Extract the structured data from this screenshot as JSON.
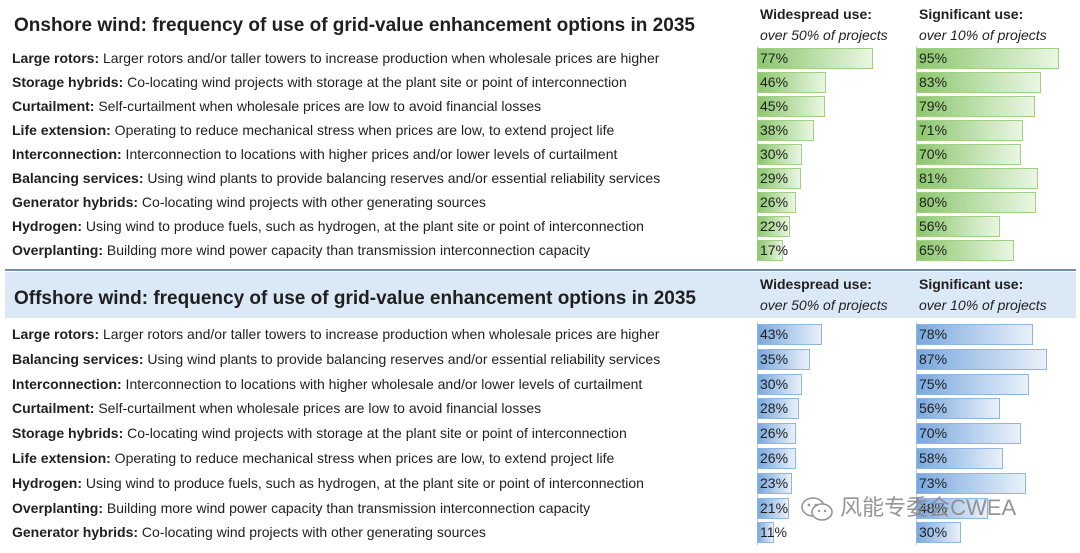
{
  "chart_data": [
    {
      "type": "bar",
      "title": "Onshore wind: frequency of use of grid-value enhancement options in 2035",
      "columns": [
        {
          "heading": "Widespread use:",
          "subheading": "over 50% of projects"
        },
        {
          "heading": "Significant use:",
          "subheading": "over 10% of projects"
        }
      ],
      "rows": [
        {
          "name": "Large rotors:",
          "desc": " Larger rotors and/or taller towers to increase production when wholesale prices are higher",
          "widespread": 77,
          "significant": 95
        },
        {
          "name": "Storage hybrids:",
          "desc": " Co-locating wind projects with storage at the plant site or point of interconnection",
          "widespread": 46,
          "significant": 83
        },
        {
          "name": "Curtailment:",
          "desc": " Self-curtailment when wholesale prices are low to avoid financial losses",
          "widespread": 45,
          "significant": 79
        },
        {
          "name": "Life extension:",
          "desc": " Operating to reduce mechanical stress when prices are low, to extend project life",
          "widespread": 38,
          "significant": 71
        },
        {
          "name": "Interconnection:",
          "desc": " Interconnection to locations with higher prices and/or lower levels of curtailment",
          "widespread": 30,
          "significant": 70
        },
        {
          "name": "Balancing services:",
          "desc": " Using wind plants to provide balancing reserves and/or essential reliability services",
          "widespread": 29,
          "significant": 81
        },
        {
          "name": "Generator hybrids:",
          "desc": " Co-locating wind projects with other generating sources",
          "widespread": 26,
          "significant": 80
        },
        {
          "name": "Hydrogen:",
          "desc": " Using wind to produce fuels, such as hydrogen, at the plant site or point of interconnection",
          "widespread": 22,
          "significant": 56
        },
        {
          "name": "Overplanting:",
          "desc": " Building more wind power capacity than transmission interconnection capacity",
          "widespread": 17,
          "significant": 65
        }
      ],
      "xlim": [
        0,
        100
      ],
      "unit": "%"
    },
    {
      "type": "bar",
      "title": "Offshore wind: frequency of use of grid-value enhancement options in 2035",
      "columns": [
        {
          "heading": "Widespread use:",
          "subheading": "over 50% of projects"
        },
        {
          "heading": "Significant use:",
          "subheading": "over 10% of projects"
        }
      ],
      "rows": [
        {
          "name": "Large rotors:",
          "desc": " Larger rotors and/or taller towers to increase production when wholesale prices are higher",
          "widespread": 43,
          "significant": 78
        },
        {
          "name": "Balancing services:",
          "desc": " Using wind plants to provide balancing reserves and/or essential reliability services",
          "widespread": 35,
          "significant": 87
        },
        {
          "name": "Interconnection:",
          "desc": " Interconnection to locations with higher wholesale and/or lower levels of curtailment",
          "widespread": 30,
          "significant": 75
        },
        {
          "name": "Curtailment:",
          "desc": " Self-curtailment when wholesale prices are low to avoid financial losses",
          "widespread": 28,
          "significant": 56
        },
        {
          "name": "Storage hybrids:",
          "desc": " Co-locating wind projects with storage at the plant site or point of interconnection",
          "widespread": 26,
          "significant": 70
        },
        {
          "name": "Life extension:",
          "desc": " Operating to reduce mechanical stress when prices are low, to extend project life",
          "widespread": 26,
          "significant": 58
        },
        {
          "name": "Hydrogen:",
          "desc": " Using wind to produce fuels, such as hydrogen, at the plant site or point of interconnection",
          "widespread": 23,
          "significant": 73
        },
        {
          "name": "Overplanting:",
          "desc": " Building more wind power capacity than transmission interconnection capacity",
          "widespread": 21,
          "significant": 48
        },
        {
          "name": "Generator hybrids:",
          "desc": " Co-locating wind projects with other generating sources",
          "widespread": 11,
          "significant": 30
        }
      ],
      "xlim": [
        0,
        100
      ],
      "unit": "%"
    }
  ],
  "watermark": {
    "text": "风能专委会CWEA",
    "icon": "wechat-icon"
  },
  "colors": {
    "onshore_bar": "#8cc66e",
    "offshore_bar": "#7aa8dd",
    "offshore_header": "#dbe8f6"
  }
}
